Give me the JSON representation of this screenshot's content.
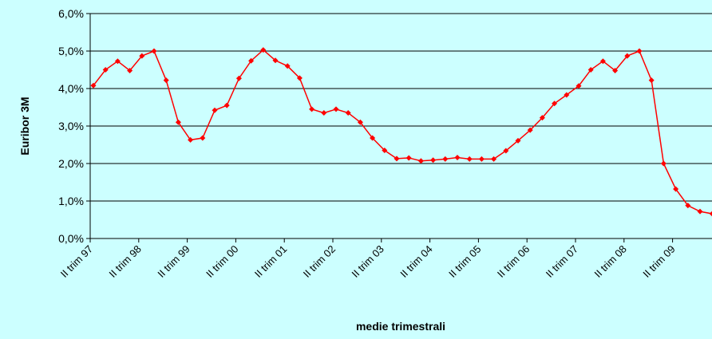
{
  "chart_data": {
    "type": "line",
    "categories": [
      "II trim 97",
      null,
      null,
      null,
      "II trim 98",
      null,
      null,
      null,
      "II trim 99",
      null,
      null,
      null,
      "II trim 00",
      null,
      null,
      null,
      "II trim 01",
      null,
      null,
      null,
      "II trim 02",
      null,
      null,
      null,
      "II trim 03",
      null,
      null,
      null,
      "II trim 04",
      null,
      null,
      null,
      "II trim 05",
      null,
      null,
      null,
      "II trim 06",
      null,
      null,
      null,
      "II trim 07",
      null,
      null,
      null,
      "II trim 08",
      null,
      null,
      null,
      "II trim 09",
      null,
      null,
      null
    ],
    "series": [
      {
        "name": "Euribor 3M",
        "color": "#ff0000",
        "values": [
          4.08,
          4.5,
          4.73,
          4.48,
          4.87,
          5.0,
          4.22,
          3.1,
          2.63,
          2.68,
          3.42,
          3.55,
          4.27,
          4.74,
          5.03,
          4.75,
          4.6,
          4.28,
          3.45,
          3.35,
          3.45,
          3.35,
          3.1,
          2.68,
          2.35,
          2.13,
          2.15,
          2.07,
          2.09,
          2.12,
          2.16,
          2.12,
          2.12,
          2.12,
          2.34,
          2.61,
          2.89,
          3.22,
          3.6,
          3.83,
          4.07,
          4.5,
          4.73,
          4.48,
          4.87,
          5.0,
          4.22,
          2.0,
          1.32,
          0.88,
          0.72,
          0.66
        ]
      }
    ],
    "ylabel": "Euribor 3M",
    "xlabel": "medie trimestrali",
    "ylim": [
      0,
      6
    ],
    "yticks": [
      {
        "value": 0,
        "label": "0,0%"
      },
      {
        "value": 1,
        "label": "1,0%"
      },
      {
        "value": 2,
        "label": "2,0%"
      },
      {
        "value": 3,
        "label": "3,0%"
      },
      {
        "value": 4,
        "label": "4,0%"
      },
      {
        "value": 5,
        "label": "5,0%"
      },
      {
        "value": 6,
        "label": "6,0%"
      }
    ],
    "grid": true
  }
}
